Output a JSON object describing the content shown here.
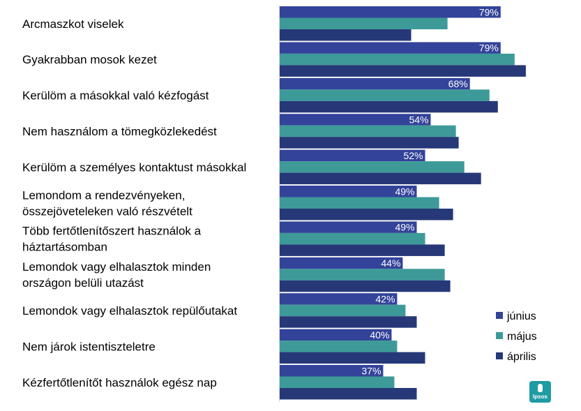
{
  "chart_data": {
    "type": "bar",
    "orientation": "horizontal",
    "categories": [
      [
        "Arcmaszkot viselek"
      ],
      [
        "Gyakrabban mosok kezet"
      ],
      [
        "Kerülöm a másokkal való kézfogást"
      ],
      [
        "Nem használom a tömegközlekedést"
      ],
      [
        "Kerülöm a személyes kontaktust másokkal"
      ],
      [
        "Lemondom a rendezvényeken,",
        "összejöveteleken való részvételt"
      ],
      [
        "Több fertőtlenítőszert használok a",
        "háztartásomban"
      ],
      [
        "Lemondok vagy elhalasztok minden",
        "országon belüli utazást"
      ],
      [
        "Lemondok vagy elhalasztok repülőutakat"
      ],
      [
        "Nem járok istentiszteletre"
      ],
      [
        "Kézfertőtlenítőt használok egész nap"
      ]
    ],
    "series": [
      {
        "name": "június",
        "color": "#33439a",
        "values": [
          79,
          79,
          68,
          54,
          52,
          49,
          49,
          44,
          42,
          40,
          37
        ],
        "labels": [
          "79%",
          "79%",
          "68%",
          "54%",
          "52%",
          "49%",
          "49%",
          "44%",
          "42%",
          "40%",
          "37%"
        ]
      },
      {
        "name": "május",
        "color": "#3d9a98",
        "values": [
          60,
          84,
          75,
          63,
          66,
          57,
          52,
          59,
          45,
          42,
          41
        ]
      },
      {
        "name": "április",
        "color": "#263878",
        "values": [
          47,
          88,
          78,
          64,
          72,
          62,
          59,
          61,
          49,
          52,
          49
        ]
      }
    ],
    "xlim": [
      0,
      100
    ],
    "legend_position": "right"
  },
  "logo": {
    "text": "Ipsos"
  }
}
